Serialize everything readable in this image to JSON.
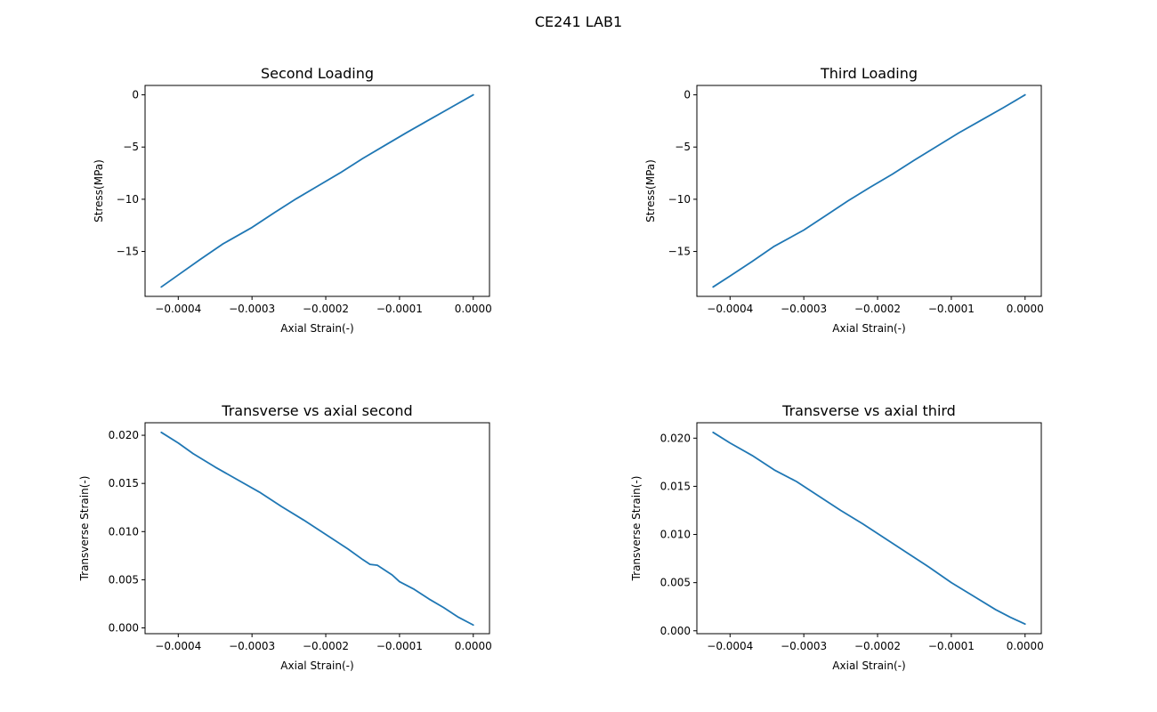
{
  "figure": {
    "title": "CE241 LAB1"
  },
  "chart_data": [
    {
      "type": "line",
      "title": "Second Loading",
      "xlabel": "Axial Strain(-)",
      "ylabel": "Stress(MPa)",
      "xlim": [
        -0.000445,
        2.2e-05
      ],
      "ylim": [
        -19.3,
        0.9
      ],
      "xticks": [
        {
          "value": -0.0004,
          "label": "−0.0004"
        },
        {
          "value": -0.0003,
          "label": "−0.0003"
        },
        {
          "value": -0.0002,
          "label": "−0.0002"
        },
        {
          "value": -0.0001,
          "label": "−0.0001"
        },
        {
          "value": 0.0,
          "label": "0.0000"
        }
      ],
      "yticks": [
        {
          "value": 0,
          "label": "0"
        },
        {
          "value": -5,
          "label": "−5"
        },
        {
          "value": -10,
          "label": "−10"
        },
        {
          "value": -15,
          "label": "−15"
        }
      ],
      "grid": false,
      "series": [
        {
          "color": "#1f77b4",
          "x": [
            -0.000423,
            -0.0004,
            -0.00037,
            -0.00034,
            -0.0003,
            -0.00027,
            -0.00024,
            -0.00021,
            -0.00018,
            -0.00015,
            -0.00012,
            -9e-05,
            -6e-05,
            -3e-05,
            0.0
          ],
          "y": [
            -18.4,
            -17.25,
            -15.75,
            -14.3,
            -12.7,
            -11.3,
            -9.95,
            -8.7,
            -7.45,
            -6.1,
            -4.85,
            -3.6,
            -2.4,
            -1.2,
            0.0
          ]
        }
      ]
    },
    {
      "type": "line",
      "title": "Third Loading",
      "xlabel": "Axial Strain(-)",
      "ylabel": "Stress(MPa)",
      "xlim": [
        -0.000445,
        2.2e-05
      ],
      "ylim": [
        -19.3,
        0.9
      ],
      "xticks": [
        {
          "value": -0.0004,
          "label": "−0.0004"
        },
        {
          "value": -0.0003,
          "label": "−0.0003"
        },
        {
          "value": -0.0002,
          "label": "−0.0002"
        },
        {
          "value": -0.0001,
          "label": "−0.0001"
        },
        {
          "value": 0.0,
          "label": "0.0000"
        }
      ],
      "yticks": [
        {
          "value": 0,
          "label": "0"
        },
        {
          "value": -5,
          "label": "−5"
        },
        {
          "value": -10,
          "label": "−10"
        },
        {
          "value": -15,
          "label": "−15"
        }
      ],
      "grid": false,
      "series": [
        {
          "color": "#1f77b4",
          "x": [
            -0.000423,
            -0.0004,
            -0.00037,
            -0.00034,
            -0.0003,
            -0.00027,
            -0.00024,
            -0.00021,
            -0.00018,
            -0.00015,
            -0.00012,
            -9e-05,
            -6e-05,
            -3e-05,
            0.0
          ],
          "y": [
            -18.4,
            -17.35,
            -15.95,
            -14.5,
            -12.95,
            -11.55,
            -10.15,
            -8.85,
            -7.6,
            -6.25,
            -4.95,
            -3.65,
            -2.45,
            -1.25,
            0.0
          ]
        }
      ]
    },
    {
      "type": "line",
      "title": "Transverse vs axial second",
      "xlabel": "Axial Strain(-)",
      "ylabel": "Transverse Strain(-)",
      "xlim": [
        -0.000445,
        2.2e-05
      ],
      "ylim": [
        -0.0006,
        0.0213
      ],
      "xticks": [
        {
          "value": -0.0004,
          "label": "−0.0004"
        },
        {
          "value": -0.0003,
          "label": "−0.0003"
        },
        {
          "value": -0.0002,
          "label": "−0.0002"
        },
        {
          "value": -0.0001,
          "label": "−0.0001"
        },
        {
          "value": 0.0,
          "label": "0.0000"
        }
      ],
      "yticks": [
        {
          "value": 0.0,
          "label": "0.000"
        },
        {
          "value": 0.005,
          "label": "0.005"
        },
        {
          "value": 0.01,
          "label": "0.010"
        },
        {
          "value": 0.015,
          "label": "0.015"
        },
        {
          "value": 0.02,
          "label": "0.020"
        }
      ],
      "grid": false,
      "series": [
        {
          "color": "#1f77b4",
          "x": [
            -0.000423,
            -0.0004,
            -0.00038,
            -0.00035,
            -0.00032,
            -0.00029,
            -0.00026,
            -0.00023,
            -0.0002,
            -0.00017,
            -0.00015,
            -0.00014,
            -0.00013,
            -0.00011,
            -0.0001,
            -8e-05,
            -6e-05,
            -4e-05,
            -2e-05,
            0.0
          ],
          "y": [
            0.0203,
            0.0192,
            0.0181,
            0.0167,
            0.0154,
            0.0141,
            0.0126,
            0.0112,
            0.0097,
            0.0082,
            0.0071,
            0.0066,
            0.0065,
            0.0055,
            0.0048,
            0.004,
            0.003,
            0.0021,
            0.0011,
            0.0003
          ]
        }
      ]
    },
    {
      "type": "line",
      "title": "Transverse vs axial third",
      "xlabel": "Axial Strain(-)",
      "ylabel": "Transverse Strain(-)",
      "xlim": [
        -0.000445,
        2.2e-05
      ],
      "ylim": [
        -0.0003,
        0.0216
      ],
      "xticks": [
        {
          "value": -0.0004,
          "label": "−0.0004"
        },
        {
          "value": -0.0003,
          "label": "−0.0003"
        },
        {
          "value": -0.0002,
          "label": "−0.0002"
        },
        {
          "value": -0.0001,
          "label": "−0.0001"
        },
        {
          "value": 0.0,
          "label": "0.0000"
        }
      ],
      "yticks": [
        {
          "value": 0.0,
          "label": "0.000"
        },
        {
          "value": 0.005,
          "label": "0.005"
        },
        {
          "value": 0.01,
          "label": "0.010"
        },
        {
          "value": 0.015,
          "label": "0.015"
        },
        {
          "value": 0.02,
          "label": "0.020"
        }
      ],
      "grid": false,
      "series": [
        {
          "color": "#1f77b4",
          "x": [
            -0.000423,
            -0.0004,
            -0.00037,
            -0.00034,
            -0.00031,
            -0.00028,
            -0.00025,
            -0.00022,
            -0.00019,
            -0.00016,
            -0.00013,
            -0.0001,
            -7e-05,
            -4e-05,
            -2e-05,
            0.0
          ],
          "y": [
            0.0206,
            0.0195,
            0.0182,
            0.0167,
            0.0155,
            0.014,
            0.0125,
            0.0111,
            0.0096,
            0.0081,
            0.0066,
            0.005,
            0.0036,
            0.0022,
            0.0014,
            0.0007
          ]
        }
      ]
    }
  ]
}
